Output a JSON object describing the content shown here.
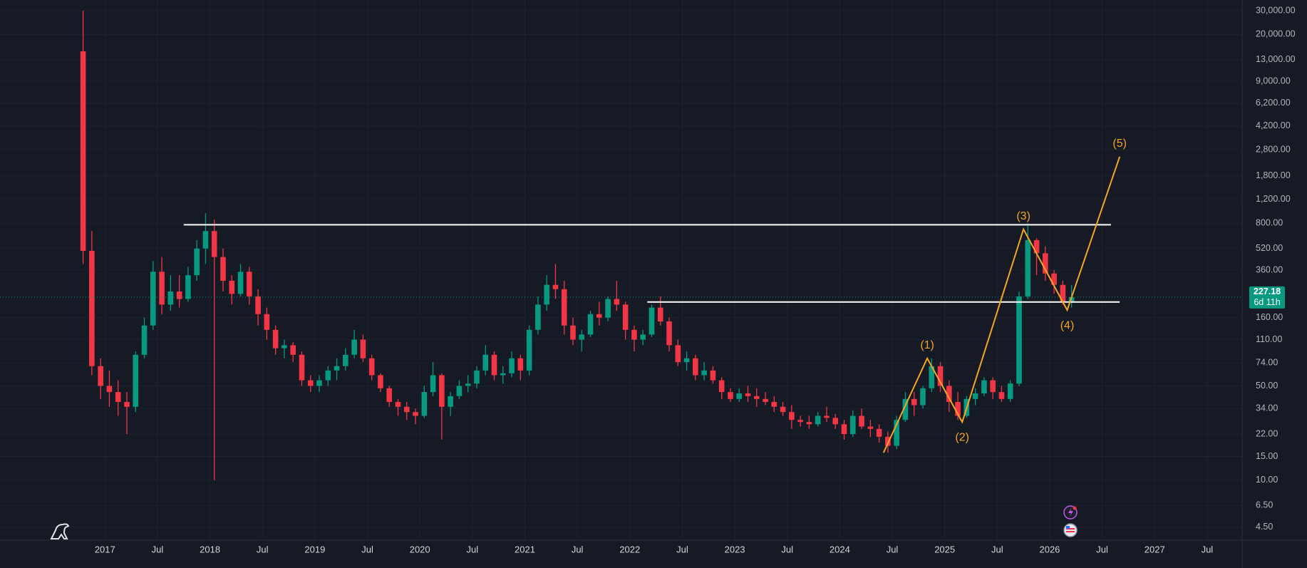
{
  "chart_data": {
    "type": "candlestick",
    "log_scale": true,
    "grid": true,
    "up_color": "#089981",
    "down_color": "#f23645",
    "x": [
      "2016-10",
      "2016-11",
      "2016-12",
      "2017-01",
      "2017-02",
      "2017-03",
      "2017-04",
      "2017-05",
      "2017-06",
      "2017-07",
      "2017-08",
      "2017-09",
      "2017-10",
      "2017-11",
      "2017-12",
      "2018-01",
      "2018-02",
      "2018-03",
      "2018-04",
      "2018-05",
      "2018-06",
      "2018-07",
      "2018-08",
      "2018-09",
      "2018-10",
      "2018-11",
      "2018-12",
      "2019-01",
      "2019-02",
      "2019-03",
      "2019-04",
      "2019-05",
      "2019-06",
      "2019-07",
      "2019-08",
      "2019-09",
      "2019-10",
      "2019-11",
      "2019-12",
      "2020-01",
      "2020-02",
      "2020-03",
      "2020-04",
      "2020-05",
      "2020-06",
      "2020-07",
      "2020-08",
      "2020-09",
      "2020-10",
      "2020-11",
      "2020-12",
      "2021-01",
      "2021-02",
      "2021-03",
      "2021-04",
      "2021-05",
      "2021-06",
      "2021-07",
      "2021-08",
      "2021-09",
      "2021-10",
      "2021-11",
      "2021-12",
      "2022-01",
      "2022-02",
      "2022-03",
      "2022-04",
      "2022-05",
      "2022-06",
      "2022-07",
      "2022-08",
      "2022-09",
      "2022-10",
      "2022-11",
      "2022-12",
      "2023-01",
      "2023-02",
      "2023-03",
      "2023-04",
      "2023-05",
      "2023-06",
      "2023-07",
      "2023-08",
      "2023-09",
      "2023-10",
      "2023-11",
      "2023-12",
      "2024-01",
      "2024-02",
      "2024-03",
      "2024-04",
      "2024-05",
      "2024-06",
      "2024-07",
      "2024-08",
      "2024-09",
      "2024-10",
      "2024-11",
      "2024-12",
      "2025-01",
      "2025-02",
      "2025-03",
      "2025-04",
      "2025-05",
      "2025-06",
      "2025-07",
      "2025-08",
      "2025-09",
      "2025-10",
      "2025-11",
      "2025-12",
      "2026-01",
      "2026-02",
      "2026-03"
    ],
    "open": [
      15000,
      500,
      70,
      50,
      45,
      38,
      35,
      85,
      140,
      350,
      200,
      250,
      220,
      330,
      520,
      700,
      450,
      300,
      240,
      350,
      230,
      170,
      130,
      95,
      100,
      85,
      55,
      50,
      55,
      65,
      70,
      85,
      110,
      80,
      60,
      48,
      38,
      35,
      32,
      30,
      45,
      60,
      35,
      42,
      50,
      52,
      65,
      85,
      60,
      62,
      80,
      65,
      130,
      200,
      280,
      260,
      140,
      110,
      120,
      170,
      160,
      220,
      200,
      130,
      110,
      120,
      190,
      150,
      100,
      75,
      80,
      60,
      65,
      55,
      45,
      40,
      44,
      42,
      40,
      38,
      35,
      32,
      28,
      27,
      26,
      30,
      29,
      26,
      22,
      30,
      25,
      24,
      21,
      18,
      28,
      40,
      36,
      48,
      70,
      50,
      38,
      30,
      40,
      44,
      55,
      45,
      40,
      52,
      230,
      600,
      480,
      340,
      280,
      210
    ],
    "high": [
      30000,
      700,
      80,
      65,
      55,
      45,
      90,
      160,
      420,
      450,
      330,
      330,
      380,
      600,
      950,
      850,
      520,
      330,
      400,
      380,
      260,
      190,
      140,
      110,
      105,
      90,
      60,
      60,
      70,
      80,
      95,
      130,
      120,
      85,
      62,
      50,
      40,
      38,
      34,
      50,
      75,
      62,
      45,
      55,
      60,
      70,
      100,
      90,
      70,
      90,
      85,
      140,
      230,
      330,
      400,
      300,
      160,
      130,
      180,
      210,
      230,
      300,
      210,
      140,
      130,
      200,
      230,
      160,
      110,
      90,
      85,
      75,
      70,
      58,
      48,
      48,
      50,
      48,
      45,
      42,
      38,
      36,
      30,
      30,
      32,
      35,
      31,
      28,
      33,
      34,
      28,
      26,
      23,
      30,
      45,
      45,
      50,
      80,
      75,
      55,
      45,
      42,
      48,
      58,
      58,
      50,
      55,
      250,
      800,
      620,
      540,
      360,
      300,
      280
    ],
    "low": [
      400,
      60,
      40,
      35,
      30,
      22,
      32,
      80,
      130,
      170,
      180,
      190,
      210,
      300,
      400,
      10,
      250,
      200,
      230,
      200,
      140,
      110,
      85,
      80,
      75,
      50,
      45,
      45,
      50,
      55,
      65,
      80,
      75,
      55,
      45,
      35,
      30,
      28,
      26,
      29,
      42,
      20,
      30,
      40,
      45,
      48,
      60,
      55,
      52,
      58,
      55,
      60,
      120,
      180,
      220,
      120,
      100,
      90,
      115,
      140,
      150,
      180,
      110,
      90,
      100,
      115,
      140,
      90,
      70,
      65,
      55,
      55,
      52,
      40,
      38,
      38,
      38,
      35,
      36,
      32,
      30,
      24,
      25,
      24,
      25,
      27,
      24,
      20,
      21,
      24,
      21,
      19,
      16,
      17,
      27,
      30,
      34,
      45,
      45,
      32,
      28,
      29,
      36,
      42,
      40,
      38,
      38,
      50,
      220,
      330,
      300,
      240,
      200,
      190
    ],
    "close": [
      500,
      70,
      50,
      45,
      38,
      35,
      85,
      140,
      350,
      200,
      250,
      220,
      330,
      520,
      700,
      450,
      300,
      240,
      350,
      230,
      170,
      130,
      95,
      100,
      85,
      55,
      50,
      55,
      65,
      70,
      85,
      110,
      80,
      60,
      48,
      38,
      35,
      32,
      30,
      45,
      60,
      35,
      42,
      50,
      52,
      65,
      85,
      60,
      62,
      80,
      65,
      130,
      200,
      280,
      260,
      140,
      110,
      120,
      170,
      160,
      220,
      200,
      130,
      110,
      120,
      190,
      150,
      100,
      75,
      80,
      60,
      65,
      55,
      45,
      40,
      44,
      42,
      40,
      38,
      35,
      32,
      28,
      27,
      26,
      30,
      29,
      26,
      22,
      30,
      25,
      24,
      21,
      18,
      28,
      40,
      36,
      48,
      70,
      50,
      38,
      30,
      40,
      44,
      55,
      45,
      40,
      52,
      230,
      600,
      480,
      340,
      280,
      210,
      227.18
    ],
    "countdown": "6d 11h",
    "xlim": [
      "2016-01",
      "2027-11"
    ],
    "xticks": [
      {
        "value": "2017-01",
        "label": "2017"
      },
      {
        "value": "2017-07",
        "label": "Jul"
      },
      {
        "value": "2018-01",
        "label": "2018"
      },
      {
        "value": "2018-07",
        "label": "Jul"
      },
      {
        "value": "2019-01",
        "label": "2019"
      },
      {
        "value": "2019-07",
        "label": "Jul"
      },
      {
        "value": "2020-01",
        "label": "2020"
      },
      {
        "value": "2020-07",
        "label": "Jul"
      },
      {
        "value": "2021-01",
        "label": "2021"
      },
      {
        "value": "2021-07",
        "label": "Jul"
      },
      {
        "value": "2022-01",
        "label": "2022"
      },
      {
        "value": "2022-07",
        "label": "Jul"
      },
      {
        "value": "2023-01",
        "label": "2023"
      },
      {
        "value": "2023-07",
        "label": "Jul"
      },
      {
        "value": "2024-01",
        "label": "2024"
      },
      {
        "value": "2024-07",
        "label": "Jul"
      },
      {
        "value": "2025-01",
        "label": "2025"
      },
      {
        "value": "2025-07",
        "label": "Jul"
      },
      {
        "value": "2026-01",
        "label": "2026"
      },
      {
        "value": "2026-07",
        "label": "Jul"
      },
      {
        "value": "2027-01",
        "label": "2027"
      },
      {
        "value": "2027-07",
        "label": "Jul"
      }
    ],
    "ylim": [
      3.6,
      36000
    ],
    "yticks": [
      {
        "value": 30000,
        "label": "30,000.00"
      },
      {
        "value": 20000,
        "label": "20,000.00"
      },
      {
        "value": 13000,
        "label": "13,000.00"
      },
      {
        "value": 9000,
        "label": "9,000.00"
      },
      {
        "value": 6200,
        "label": "6,200.00"
      },
      {
        "value": 4200,
        "label": "4,200.00"
      },
      {
        "value": 2800,
        "label": "2,800.00"
      },
      {
        "value": 1800,
        "label": "1,800.00"
      },
      {
        "value": 1200,
        "label": "1,200.00"
      },
      {
        "value": 800,
        "label": "800.00"
      },
      {
        "value": 520,
        "label": "520.00"
      },
      {
        "value": 360,
        "label": "360.00"
      },
      {
        "value": 160,
        "label": "160.00"
      },
      {
        "value": 110,
        "label": "110.00"
      },
      {
        "value": 74,
        "label": "74.00"
      },
      {
        "value": 50,
        "label": "50.00"
      },
      {
        "value": 34,
        "label": "34.00"
      },
      {
        "value": 22,
        "label": "22.00"
      },
      {
        "value": 15,
        "label": "15.00"
      },
      {
        "value": 10,
        "label": "10.00"
      },
      {
        "value": 6.5,
        "label": "6.50"
      },
      {
        "value": 4.5,
        "label": "4.50"
      }
    ],
    "levels": [
      {
        "x": [
          "2017-10",
          "2026-08"
        ],
        "y": [
          780,
          780
        ]
      },
      {
        "x": [
          "2022-03",
          "2026-09"
        ],
        "y": [
          209,
          209
        ]
      }
    ],
    "level_color": "#ffffff",
    "wave": {
      "x": [
        "2024-06",
        "2024-11",
        "2025-03",
        "2025-10",
        "2026-03",
        "2026-09"
      ],
      "y": [
        16,
        80,
        27,
        723,
        182,
        2490
      ],
      "labels": [
        null,
        "(1)",
        "(2)",
        "(3)",
        "(4)",
        "(5)"
      ],
      "color": "#f5a623"
    }
  }
}
